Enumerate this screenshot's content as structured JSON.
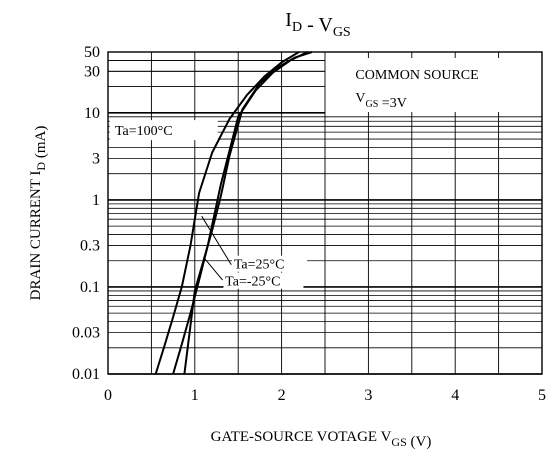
{
  "chart_data": {
    "type": "line",
    "title": "I_D  -  V_GS",
    "xlabel": "GATE-SOURCE VOTAGE V_GS  (V)",
    "ylabel": "DRAIN CURRENT I_D  (mA)",
    "xlim": [
      0,
      5
    ],
    "ylim": [
      0.01,
      50
    ],
    "yscale": "log",
    "grid": true,
    "x_ticks": [
      "0",
      "1",
      "2",
      "3",
      "4",
      "5"
    ],
    "y_ticks": [
      "50",
      "30",
      "10",
      "3",
      "1",
      "0.3",
      "0.1",
      "0.03",
      "0.01"
    ],
    "annotation": "COMMON SOURCE",
    "annotation_condition": "V_GS =3V",
    "series": [
      {
        "name": "Ta=100°C",
        "x": [
          0.55,
          0.65,
          0.75,
          0.85,
          0.95,
          1.05,
          1.2,
          1.4,
          1.6,
          1.8,
          2.0,
          2.2
        ],
        "y": [
          0.01,
          0.021,
          0.045,
          0.1,
          0.3,
          1.2,
          3.5,
          8.5,
          16,
          26,
          38,
          50
        ]
      },
      {
        "name": "Ta=25°C",
        "x": [
          0.75,
          0.85,
          0.95,
          1.05,
          1.15,
          1.3,
          1.5,
          1.7,
          1.9,
          2.1,
          2.3
        ],
        "y": [
          0.01,
          0.022,
          0.05,
          0.12,
          0.3,
          1.5,
          9,
          18,
          29,
          40,
          50
        ]
      },
      {
        "name": "Ta=-25°C",
        "x": [
          0.88,
          1.0,
          1.1,
          1.2,
          1.3,
          1.4,
          1.55,
          1.75,
          1.95,
          2.15,
          2.35
        ],
        "y": [
          0.01,
          0.09,
          0.2,
          0.45,
          1.1,
          3.2,
          11,
          22,
          33,
          43,
          50
        ]
      }
    ]
  }
}
